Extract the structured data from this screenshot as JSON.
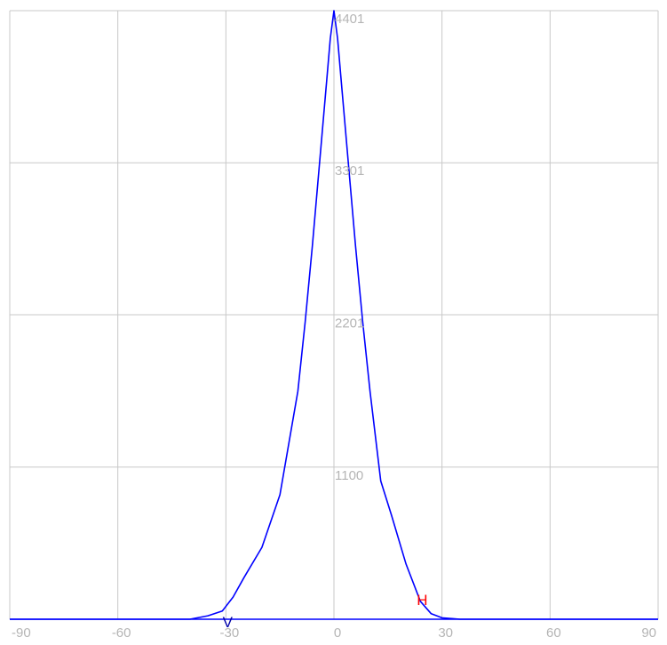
{
  "chart_data": {
    "type": "line",
    "title": "",
    "xlabel": "",
    "ylabel": "",
    "xlim": [
      -90,
      90
    ],
    "ylim": [
      0,
      4401
    ],
    "grid": true,
    "x_ticks": [
      -90,
      -60,
      -30,
      0,
      30,
      60,
      90
    ],
    "x_tick_labels": [
      "-90",
      "-60",
      "-30",
      "0",
      "30",
      "60",
      "90"
    ],
    "y_ticks": [
      1100,
      2201,
      3301,
      4401
    ],
    "y_tick_labels": [
      "1100",
      "2201",
      "3301",
      "4401"
    ],
    "series": [
      {
        "color": "#0000ff",
        "x": [
          -90,
          -40,
          -35,
          -31,
          -28,
          -25,
          -20,
          -15,
          -10,
          -8,
          -6,
          -4,
          -2,
          -1,
          0,
          1,
          2,
          4,
          6,
          8,
          10,
          13,
          16,
          20,
          24,
          27,
          30,
          35,
          40,
          90
        ],
        "y": [
          0,
          0,
          25,
          60,
          160,
          300,
          520,
          900,
          1650,
          2150,
          2700,
          3300,
          3900,
          4200,
          4401,
          4200,
          3900,
          3300,
          2700,
          2150,
          1650,
          1000,
          750,
          400,
          130,
          40,
          10,
          0,
          0,
          0
        ]
      }
    ],
    "markers": [
      {
        "label": "V",
        "x": -30,
        "y": 20,
        "color": "#0000aa"
      },
      {
        "label": "H",
        "x": 24,
        "y": 180,
        "color": "#ff0000"
      }
    ]
  }
}
